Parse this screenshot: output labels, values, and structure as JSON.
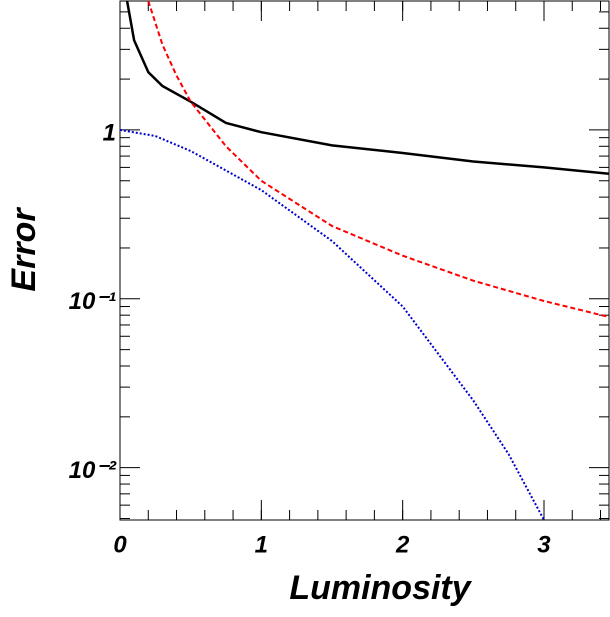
{
  "chart_data": {
    "type": "line",
    "x_label": "Luminosity",
    "y_label": "Error",
    "xlim": [
      0,
      3.46
    ],
    "ylim": [
      0.0049,
      5.8
    ],
    "log_y": true,
    "xticks": [
      0,
      1,
      2,
      3
    ],
    "yticks": [
      {
        "value": 0.01,
        "label": "10⁻²"
      },
      {
        "value": 0.1,
        "label": "10⁻¹"
      },
      1
    ],
    "series": [
      {
        "color": "#000000",
        "dash": "solid",
        "x": [
          0.05,
          0.1,
          0.2,
          0.3,
          0.5,
          0.75,
          1,
          1.5,
          2,
          2.5,
          3,
          3.46
        ],
        "values": [
          5.8,
          3.4,
          2.2,
          1.82,
          1.47,
          1.1,
          0.97,
          0.81,
          0.73,
          0.65,
          0.6,
          0.55
        ]
      },
      {
        "color": "#ff0000",
        "dash": "dashed",
        "x": [
          0.2,
          0.3,
          0.4,
          0.5,
          0.75,
          1,
          1.5,
          2,
          2.5,
          3,
          3.46
        ],
        "values": [
          5.8,
          3.2,
          2.1,
          1.47,
          0.8,
          0.5,
          0.27,
          0.18,
          0.128,
          0.097,
          0.078
        ]
      },
      {
        "color": "#0000cc",
        "dash": "dotted",
        "x": [
          0,
          0.25,
          0.5,
          1,
          1.5,
          2,
          2.5,
          2.75,
          3
        ],
        "values": [
          1.0,
          0.92,
          0.75,
          0.44,
          0.22,
          0.09,
          0.025,
          0.012,
          0.0049
        ]
      }
    ]
  }
}
